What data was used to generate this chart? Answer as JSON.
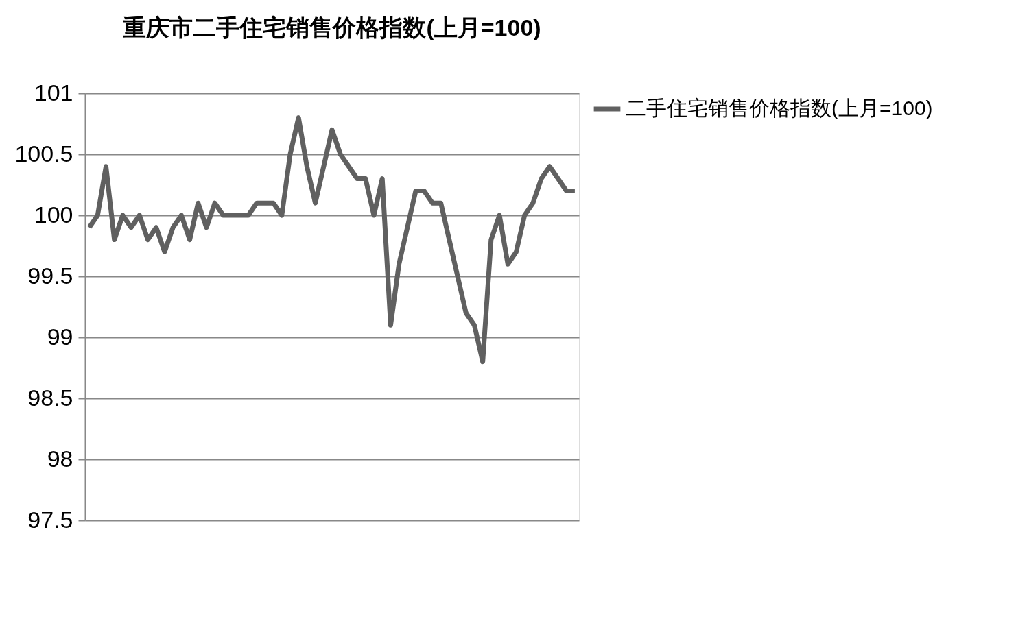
{
  "chart_data": {
    "type": "line",
    "title": "重庆市二手住宅销售价格指数(上月=100)",
    "categories": [
      null,
      null,
      null,
      null,
      null,
      null,
      null,
      null,
      null,
      null,
      null,
      null,
      null,
      null,
      null,
      null,
      null,
      null,
      null,
      null,
      null,
      null,
      null,
      null,
      null,
      null,
      null,
      null,
      null,
      null,
      null,
      null,
      null,
      null,
      null,
      null,
      null,
      null,
      null,
      null,
      null,
      null,
      null,
      null,
      null,
      null,
      null,
      null,
      null,
      null,
      null,
      null,
      null,
      null,
      null,
      null,
      null,
      null,
      null
    ],
    "series": [
      {
        "name": "二手住宅销售价格指数(上月=100)",
        "color": "#606060",
        "values": [
          99.9,
          100,
          100.4,
          99.8,
          100,
          99.9,
          100,
          99.8,
          99.9,
          99.7,
          99.9,
          100,
          99.8,
          100.1,
          99.9,
          100.1,
          100,
          100,
          100,
          100,
          100.1,
          100.1,
          100.1,
          100,
          100.5,
          100.8,
          100.4,
          100.1,
          100.4,
          100.7,
          100.5,
          100.4,
          100.3,
          100.3,
          100,
          100.3,
          99.1,
          99.6,
          99.9,
          100.2,
          100.2,
          100.1,
          100.1,
          99.8,
          99.5,
          99.2,
          99.1,
          98.8,
          99.8,
          100,
          99.6,
          99.7,
          100,
          100.1,
          100.3,
          100.4,
          100.3,
          100.2,
          100.2
        ]
      }
    ],
    "ylim": [
      97.5,
      101
    ],
    "yticks": [
      97.5,
      98,
      98.5,
      99,
      99.5,
      100,
      100.5,
      101
    ],
    "grid": "y",
    "legend": "right",
    "marker": "none",
    "line_style": "solid"
  }
}
